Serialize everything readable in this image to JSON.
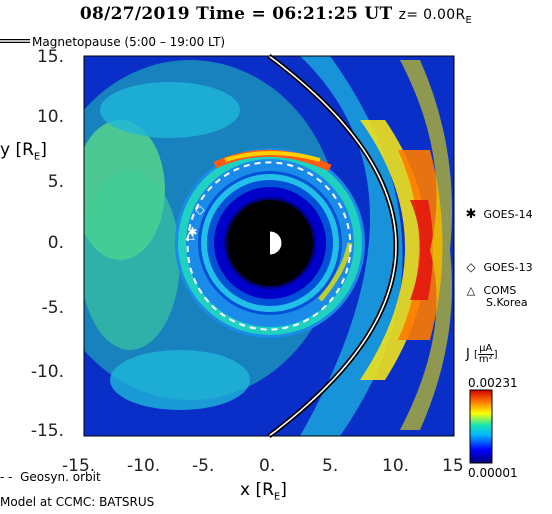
{
  "header": {
    "date": "08/27/2019",
    "time_label": "Time =",
    "time": "06:21:25 UT",
    "z_label": "z= 0.00R",
    "z_sub": "E"
  },
  "legend": {
    "magnetopause": "Magnetopause (5:00 – 19:00 LT)",
    "geosyn": "Geosyn. orbit",
    "model": "Model at CCMC: BATSRUS"
  },
  "satellites": [
    {
      "name": "GOES-14",
      "symbol": "✱",
      "x": -6.2,
      "y": 1.1
    },
    {
      "name": "GOES-13",
      "symbol": "◇",
      "x": -5.6,
      "y": 2.9
    },
    {
      "name": "COMS",
      "name2": "S.Korea",
      "symbol": "△",
      "x": -6.4,
      "y": 0.9
    }
  ],
  "colorbar": {
    "label": "J",
    "unit_num": "μA",
    "unit_den": "m²",
    "max": "0.00231",
    "min": "0.00001"
  },
  "chart_data": {
    "type": "heatmap",
    "title": "08/27/2019 Time = 06:21:25 UT z= 0.00RE",
    "xlabel": "x [RE]",
    "ylabel": "y [RE]",
    "xlim": [
      -15,
      15
    ],
    "ylim": [
      -15,
      15
    ],
    "x_ticks": [
      "-15.",
      "-10.",
      "-5.",
      "0.",
      "5.",
      "10.",
      "15"
    ],
    "y_ticks": [
      "15.",
      "10.",
      "5.",
      "0.",
      "-5.",
      "-10.",
      "-15."
    ],
    "color_range": [
      1e-05,
      0.00231
    ],
    "geosync_radius": 6.6,
    "inner_boundary_radius": 3.5,
    "magnetopause_standoff": 10.3,
    "magnetopause_flank_y": 15
  },
  "colors": {
    "background_field": "#0a2ec8",
    "cb_stops": [
      "#00007a",
      "#0000ff",
      "#00b4ff",
      "#18e6b4",
      "#ffff00",
      "#ff7800",
      "#d20000"
    ]
  }
}
